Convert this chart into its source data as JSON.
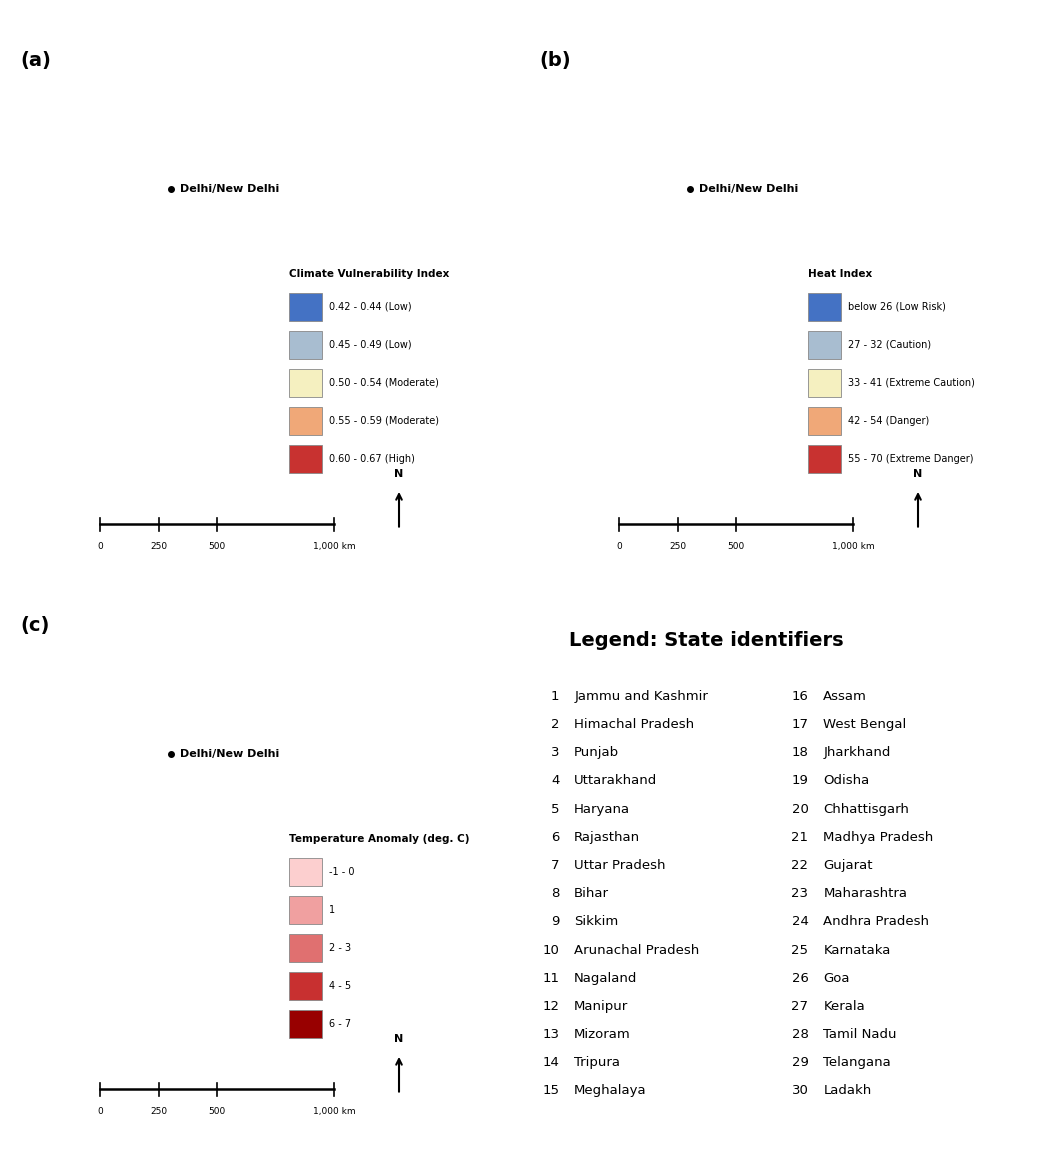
{
  "delhi_label": "Delhi/New Delhi",
  "legend_a_title": "Climate Vulnerability Index",
  "legend_a_entries": [
    [
      "#4472C4",
      "0.42 - 0.44 (Low)"
    ],
    [
      "#A8BDD0",
      "0.45 - 0.49 (Low)"
    ],
    [
      "#F5F0C0",
      "0.50 - 0.54 (Moderate)"
    ],
    [
      "#F0A878",
      "0.55 - 0.59 (Moderate)"
    ],
    [
      "#C83230",
      "0.60 - 0.67 (High)"
    ]
  ],
  "legend_b_title": "Heat Index",
  "legend_b_entries": [
    [
      "#4472C4",
      "below 26 (Low Risk)"
    ],
    [
      "#A8BDD0",
      "27 - 32 (Caution)"
    ],
    [
      "#F5F0C0",
      "33 - 41 (Extreme Caution)"
    ],
    [
      "#F0A878",
      "42 - 54 (Danger)"
    ],
    [
      "#C83230",
      "55 - 70 (Extreme Danger)"
    ]
  ],
  "legend_c_title": "Temperature Anomaly (deg. C)",
  "legend_c_entries": [
    [
      "#FCCFCF",
      "-1 - 0"
    ],
    [
      "#F0A0A0",
      "1"
    ],
    [
      "#E07070",
      "2 - 3"
    ],
    [
      "#C83030",
      "4 - 5"
    ],
    [
      "#980000",
      "6 - 7"
    ]
  ],
  "cvi_colors": {
    "Jammu & Kashmir": "#F0A878",
    "Himachal Pradesh": "#A8BDD0",
    "Punjab": "#A8BDD0",
    "Uttarakhand": "#F0A878",
    "Haryana": "#A8BDD0",
    "Rajasthan": "#F5F0C0",
    "Uttar Pradesh": "#F0A878",
    "Bihar": "#C83230",
    "Sikkim": "#A8BDD0",
    "Arunachal Pradesh": "#C83230",
    "Nagaland": "#4472C4",
    "Manipur": "#F5F0C0",
    "Mizoram": "#C83230",
    "Tripura": "#F0A878",
    "Meghalaya": "#F0A878",
    "Assam": "#C83230",
    "West Bengal": "#A8BDD0",
    "Jharkhand": "#C83230",
    "Odisha": "#C83230",
    "Chhattisgarh": "#C83230",
    "Madhya Pradesh": "#F5F0C0",
    "Gujarat": "#F0A878",
    "Maharashtra": "#4472C4",
    "Andhra Pradesh": "#F5F0C0",
    "Karnataka": "#F5F0C0",
    "Goa": "#4472C4",
    "Kerala": "#A8BDD0",
    "Tamil Nadu": "#A8BDD0",
    "Telangana": "#A8BDD0",
    "Ladakh": "#F0A878",
    "Delhi": "#A8BDD0"
  },
  "heat_colors": {
    "Jammu & Kashmir": "#F0A878",
    "Himachal Pradesh": "#F5F0C0",
    "Punjab": "#F0A878",
    "Uttarakhand": "#F5F0C0",
    "Haryana": "#F0A878",
    "Rajasthan": "#F0A878",
    "Uttar Pradesh": "#F0A878",
    "Bihar": "#F0A878",
    "Sikkim": "#4472C4",
    "Arunachal Pradesh": "#F0A878",
    "Nagaland": "#F0A878",
    "Manipur": "#F5F0C0",
    "Mizoram": "#F5F0C0",
    "Tripura": "#F5F0C0",
    "Meghalaya": "#A8BDD0",
    "Assam": "#F0A878",
    "West Bengal": "#C83230",
    "Jharkhand": "#F0A878",
    "Odisha": "#F0A878",
    "Chhattisgarh": "#F0A878",
    "Madhya Pradesh": "#F0A878",
    "Gujarat": "#F0A878",
    "Maharashtra": "#F0A878",
    "Andhra Pradesh": "#C83230",
    "Karnataka": "#F0A878",
    "Goa": "#F0A878",
    "Kerala": "#F0A878",
    "Tamil Nadu": "#F0A878",
    "Telangana": "#F0A878",
    "Ladakh": "#A8BDD0",
    "Delhi": "#F0A878"
  },
  "temp_colors": {
    "Jammu & Kashmir": "#C83030",
    "Himachal Pradesh": "#C83030",
    "Punjab": "#980000",
    "Uttarakhand": "#C83030",
    "Haryana": "#980000",
    "Rajasthan": "#C83030",
    "Uttar Pradesh": "#C83030",
    "Bihar": "#C83030",
    "Sikkim": "#FCCFCF",
    "Arunachal Pradesh": "#FCCFCF",
    "Nagaland": "#FCCFCF",
    "Manipur": "#FCCFCF",
    "Mizoram": "#FCCFCF",
    "Tripura": "#FCCFCF",
    "Meghalaya": "#FCCFCF",
    "Assam": "#FCCFCF",
    "West Bengal": "#C83030",
    "Jharkhand": "#C83030",
    "Odisha": "#E07070",
    "Chhattisgarh": "#C83030",
    "Madhya Pradesh": "#C83030",
    "Gujarat": "#E07070",
    "Maharashtra": "#E07070",
    "Andhra Pradesh": "#FCCFCF",
    "Karnataka": "#FCCFCF",
    "Goa": "#E07070",
    "Kerala": "#FCCFCF",
    "Tamil Nadu": "#FCCFCF",
    "Telangana": "#FCCFCF",
    "Ladakh": "#C83030",
    "Delhi": "#980000"
  },
  "state_number_map": {
    "Jammu & Kashmir": 1,
    "Himachal Pradesh": 2,
    "Punjab": 3,
    "Uttarakhand": 4,
    "Haryana": 5,
    "Rajasthan": 6,
    "Uttar Pradesh": 7,
    "Bihar": 8,
    "Sikkim": 9,
    "Arunachal Pradesh": 10,
    "Nagaland": 11,
    "Manipur": 12,
    "Mizoram": 13,
    "Tripura": 14,
    "Meghalaya": 15,
    "Assam": 16,
    "West Bengal": 17,
    "Jharkhand": 18,
    "Odisha": 19,
    "Chhattisgarh": 20,
    "Madhya Pradesh": 21,
    "Gujarat": 22,
    "Maharashtra": 23,
    "Andhra Pradesh": 24,
    "Karnataka": 25,
    "Goa": 26,
    "Kerala": 27,
    "Tamil Nadu": 28,
    "Telangana": 29,
    "Ladakh": 30,
    "Delhi": 5
  },
  "state_legend_col1": [
    [
      1,
      "Jammu and Kashmir"
    ],
    [
      2,
      "Himachal Pradesh"
    ],
    [
      3,
      "Punjab"
    ],
    [
      4,
      "Uttarakhand"
    ],
    [
      5,
      "Haryana"
    ],
    [
      6,
      "Rajasthan"
    ],
    [
      7,
      "Uttar Pradesh"
    ],
    [
      8,
      "Bihar"
    ],
    [
      9,
      "Sikkim"
    ],
    [
      10,
      "Arunachal Pradesh"
    ],
    [
      11,
      "Nagaland"
    ],
    [
      12,
      "Manipur"
    ],
    [
      13,
      "Mizoram"
    ],
    [
      14,
      "Tripura"
    ],
    [
      15,
      "Meghalaya"
    ]
  ],
  "state_legend_col2": [
    [
      16,
      "Assam"
    ],
    [
      17,
      "West Bengal"
    ],
    [
      18,
      "Jharkhand"
    ],
    [
      19,
      "Odisha"
    ],
    [
      20,
      "Chhattisgarh"
    ],
    [
      21,
      "Madhya Pradesh"
    ],
    [
      22,
      "Gujarat"
    ],
    [
      23,
      "Maharashtra"
    ],
    [
      24,
      "Andhra Pradesh"
    ],
    [
      25,
      "Karnataka"
    ],
    [
      26,
      "Goa"
    ],
    [
      27,
      "Kerala"
    ],
    [
      28,
      "Tamil Nadu"
    ],
    [
      29,
      "Telangana"
    ],
    [
      30,
      "Ladakh"
    ]
  ]
}
